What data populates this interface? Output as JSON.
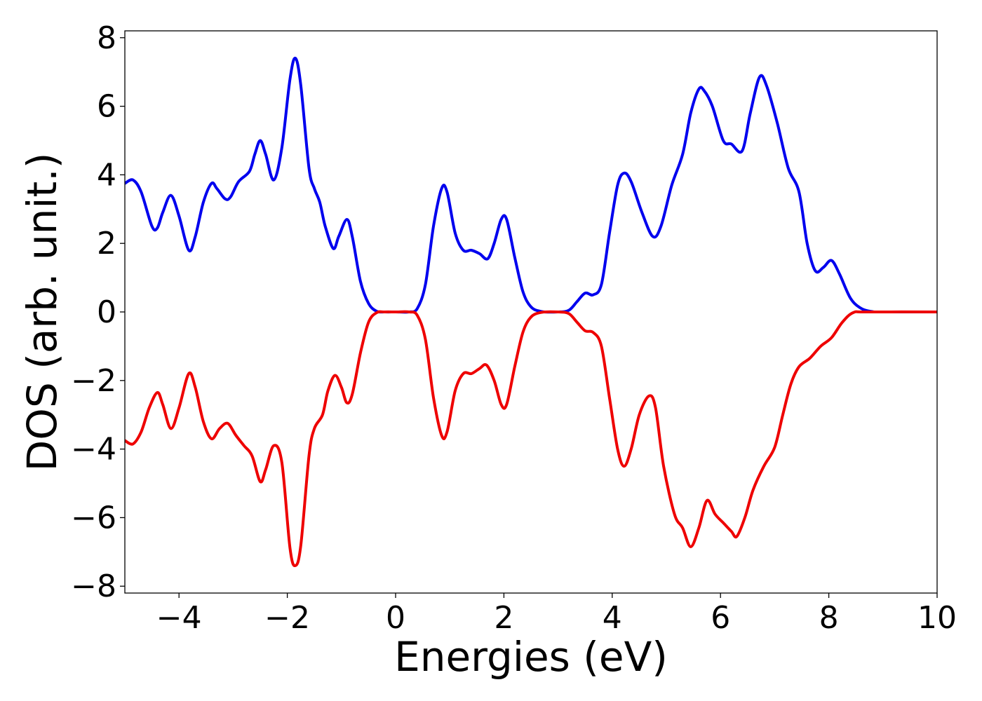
{
  "chart_data": {
    "type": "line",
    "title": "",
    "xlabel": "Energies (eV)",
    "ylabel": "DOS (arb. unit.)",
    "xlim": [
      -5,
      10
    ],
    "ylim": [
      -8.2,
      8.2
    ],
    "grid": false,
    "legend": "none",
    "x_ticks": [
      {
        "value": -4,
        "label": "−4"
      },
      {
        "value": -2,
        "label": "−2"
      },
      {
        "value": 0,
        "label": "0"
      },
      {
        "value": 2,
        "label": "2"
      },
      {
        "value": 4,
        "label": "4"
      },
      {
        "value": 6,
        "label": "6"
      },
      {
        "value": 8,
        "label": "8"
      },
      {
        "value": 10,
        "label": "10"
      }
    ],
    "y_ticks": [
      {
        "value": 8,
        "label": "8"
      },
      {
        "value": 6,
        "label": "6"
      },
      {
        "value": 4,
        "label": "4"
      },
      {
        "value": 2,
        "label": "2"
      },
      {
        "value": 0,
        "label": "0"
      },
      {
        "value": -2,
        "label": "−2"
      },
      {
        "value": -4,
        "label": "−4"
      },
      {
        "value": -6,
        "label": "−6"
      },
      {
        "value": -8,
        "label": "−8"
      }
    ],
    "series": [
      {
        "color": "#0000ee",
        "points": [
          [
            -5.0,
            3.75
          ],
          [
            -4.85,
            3.85
          ],
          [
            -4.7,
            3.5
          ],
          [
            -4.5,
            2.5
          ],
          [
            -4.4,
            2.45
          ],
          [
            -4.3,
            2.9
          ],
          [
            -4.15,
            3.4
          ],
          [
            -4.0,
            2.8
          ],
          [
            -3.82,
            1.8
          ],
          [
            -3.7,
            2.2
          ],
          [
            -3.55,
            3.2
          ],
          [
            -3.4,
            3.75
          ],
          [
            -3.3,
            3.6
          ],
          [
            -3.15,
            3.3
          ],
          [
            -3.05,
            3.35
          ],
          [
            -2.9,
            3.8
          ],
          [
            -2.7,
            4.1
          ],
          [
            -2.6,
            4.6
          ],
          [
            -2.5,
            5.0
          ],
          [
            -2.4,
            4.6
          ],
          [
            -2.25,
            3.85
          ],
          [
            -2.1,
            4.8
          ],
          [
            -1.95,
            6.8
          ],
          [
            -1.85,
            7.4
          ],
          [
            -1.75,
            6.6
          ],
          [
            -1.6,
            4.2
          ],
          [
            -1.5,
            3.6
          ],
          [
            -1.4,
            3.2
          ],
          [
            -1.3,
            2.5
          ],
          [
            -1.15,
            1.85
          ],
          [
            -1.05,
            2.2
          ],
          [
            -0.9,
            2.7
          ],
          [
            -0.8,
            2.2
          ],
          [
            -0.65,
            0.9
          ],
          [
            -0.5,
            0.25
          ],
          [
            -0.35,
            0.02
          ],
          [
            -0.2,
            0.0
          ],
          [
            0.0,
            0.0
          ],
          [
            0.25,
            0.0
          ],
          [
            0.4,
            0.1
          ],
          [
            0.55,
            0.8
          ],
          [
            0.7,
            2.5
          ],
          [
            0.85,
            3.6
          ],
          [
            0.95,
            3.5
          ],
          [
            1.1,
            2.3
          ],
          [
            1.25,
            1.8
          ],
          [
            1.4,
            1.8
          ],
          [
            1.55,
            1.7
          ],
          [
            1.7,
            1.55
          ],
          [
            1.82,
            2.0
          ],
          [
            1.95,
            2.7
          ],
          [
            2.05,
            2.7
          ],
          [
            2.2,
            1.6
          ],
          [
            2.35,
            0.6
          ],
          [
            2.5,
            0.15
          ],
          [
            2.7,
            0.01
          ],
          [
            3.0,
            0.0
          ],
          [
            3.2,
            0.05
          ],
          [
            3.35,
            0.3
          ],
          [
            3.5,
            0.55
          ],
          [
            3.65,
            0.5
          ],
          [
            3.8,
            0.8
          ],
          [
            3.95,
            2.3
          ],
          [
            4.1,
            3.7
          ],
          [
            4.22,
            4.05
          ],
          [
            4.35,
            3.8
          ],
          [
            4.55,
            2.9
          ],
          [
            4.75,
            2.2
          ],
          [
            4.9,
            2.5
          ],
          [
            5.1,
            3.7
          ],
          [
            5.3,
            4.6
          ],
          [
            5.45,
            5.8
          ],
          [
            5.6,
            6.5
          ],
          [
            5.7,
            6.45
          ],
          [
            5.85,
            6.0
          ],
          [
            6.05,
            5.0
          ],
          [
            6.2,
            4.9
          ],
          [
            6.4,
            4.7
          ],
          [
            6.55,
            5.8
          ],
          [
            6.72,
            6.85
          ],
          [
            6.85,
            6.6
          ],
          [
            7.05,
            5.5
          ],
          [
            7.25,
            4.2
          ],
          [
            7.45,
            3.5
          ],
          [
            7.6,
            2.0
          ],
          [
            7.75,
            1.2
          ],
          [
            7.9,
            1.3
          ],
          [
            8.05,
            1.5
          ],
          [
            8.2,
            1.1
          ],
          [
            8.4,
            0.4
          ],
          [
            8.6,
            0.1
          ],
          [
            8.8,
            0.01
          ],
          [
            9.0,
            0.0
          ],
          [
            10.0,
            0.0
          ]
        ]
      },
      {
        "color": "#ee0000",
        "points": [
          [
            -5.0,
            -3.75
          ],
          [
            -4.85,
            -3.85
          ],
          [
            -4.7,
            -3.5
          ],
          [
            -4.55,
            -2.8
          ],
          [
            -4.4,
            -2.35
          ],
          [
            -4.3,
            -2.7
          ],
          [
            -4.15,
            -3.4
          ],
          [
            -4.0,
            -2.8
          ],
          [
            -3.82,
            -1.8
          ],
          [
            -3.7,
            -2.2
          ],
          [
            -3.55,
            -3.2
          ],
          [
            -3.4,
            -3.7
          ],
          [
            -3.25,
            -3.4
          ],
          [
            -3.1,
            -3.25
          ],
          [
            -2.95,
            -3.6
          ],
          [
            -2.8,
            -3.9
          ],
          [
            -2.65,
            -4.2
          ],
          [
            -2.5,
            -4.95
          ],
          [
            -2.4,
            -4.6
          ],
          [
            -2.25,
            -3.9
          ],
          [
            -2.1,
            -4.4
          ],
          [
            -1.95,
            -6.9
          ],
          [
            -1.85,
            -7.4
          ],
          [
            -1.75,
            -6.8
          ],
          [
            -1.6,
            -4.2
          ],
          [
            -1.5,
            -3.4
          ],
          [
            -1.35,
            -3.0
          ],
          [
            -1.25,
            -2.3
          ],
          [
            -1.12,
            -1.85
          ],
          [
            -1.0,
            -2.2
          ],
          [
            -0.9,
            -2.65
          ],
          [
            -0.8,
            -2.4
          ],
          [
            -0.65,
            -1.2
          ],
          [
            -0.5,
            -0.3
          ],
          [
            -0.35,
            -0.02
          ],
          [
            -0.2,
            0.0
          ],
          [
            0.0,
            0.0
          ],
          [
            0.25,
            0.0
          ],
          [
            0.4,
            -0.1
          ],
          [
            0.55,
            -0.8
          ],
          [
            0.7,
            -2.5
          ],
          [
            0.85,
            -3.6
          ],
          [
            0.95,
            -3.5
          ],
          [
            1.1,
            -2.3
          ],
          [
            1.25,
            -1.8
          ],
          [
            1.4,
            -1.8
          ],
          [
            1.55,
            -1.65
          ],
          [
            1.68,
            -1.55
          ],
          [
            1.82,
            -2.0
          ],
          [
            1.95,
            -2.7
          ],
          [
            2.05,
            -2.7
          ],
          [
            2.2,
            -1.6
          ],
          [
            2.35,
            -0.6
          ],
          [
            2.5,
            -0.15
          ],
          [
            2.7,
            -0.01
          ],
          [
            3.0,
            0.0
          ],
          [
            3.2,
            -0.05
          ],
          [
            3.35,
            -0.3
          ],
          [
            3.5,
            -0.55
          ],
          [
            3.65,
            -0.6
          ],
          [
            3.8,
            -1.0
          ],
          [
            3.95,
            -2.5
          ],
          [
            4.1,
            -4.0
          ],
          [
            4.22,
            -4.5
          ],
          [
            4.35,
            -4.0
          ],
          [
            4.5,
            -3.0
          ],
          [
            4.68,
            -2.45
          ],
          [
            4.8,
            -2.8
          ],
          [
            4.95,
            -4.5
          ],
          [
            5.15,
            -5.9
          ],
          [
            5.3,
            -6.3
          ],
          [
            5.45,
            -6.85
          ],
          [
            5.6,
            -6.3
          ],
          [
            5.75,
            -5.5
          ],
          [
            5.9,
            -5.9
          ],
          [
            6.05,
            -6.15
          ],
          [
            6.2,
            -6.4
          ],
          [
            6.3,
            -6.55
          ],
          [
            6.45,
            -6.0
          ],
          [
            6.6,
            -5.2
          ],
          [
            6.8,
            -4.5
          ],
          [
            7.0,
            -3.95
          ],
          [
            7.15,
            -3.0
          ],
          [
            7.3,
            -2.1
          ],
          [
            7.45,
            -1.6
          ],
          [
            7.65,
            -1.35
          ],
          [
            7.85,
            -1.0
          ],
          [
            8.05,
            -0.75
          ],
          [
            8.25,
            -0.3
          ],
          [
            8.45,
            -0.02
          ],
          [
            8.7,
            0.0
          ],
          [
            10.0,
            0.0
          ]
        ]
      }
    ]
  }
}
